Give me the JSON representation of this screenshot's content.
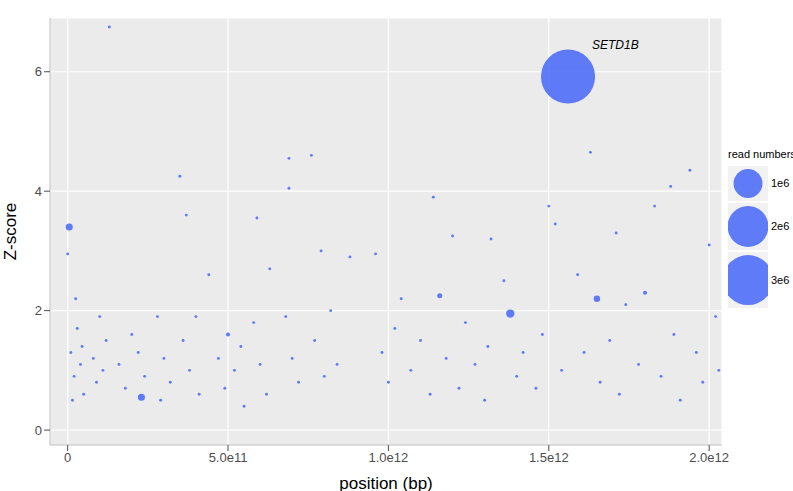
{
  "chart_data": {
    "type": "scatter",
    "x_label": "position (bp)",
    "y_label": "Z-score",
    "color": "#4f6ef7",
    "grid": true,
    "xlim": [
      -55000000000,
      2040000000000
    ],
    "xticks": [
      0,
      {
        "value": 500000000000,
        "label": "5.0e11"
      },
      {
        "value": 1000000000000,
        "label": "1.0e12"
      },
      {
        "value": 1500000000000,
        "label": "1.5e12"
      },
      {
        "value": 2000000000000,
        "label": "2.0e12"
      }
    ],
    "ylim": [
      -0.25,
      6.9
    ],
    "yticks": [
      0,
      2,
      4,
      6
    ],
    "x": [
      0,
      5000000000.0,
      10000000000.0,
      20000000000.0,
      30000000000.0,
      40000000000.0,
      50000000000.0,
      25000000000.0,
      45000000000.0,
      15000000000.0,
      80000000000.0,
      90000000000.0,
      100000000000.0,
      110000000000.0,
      130000000000.0,
      120000000000.0,
      160000000000.0,
      180000000000.0,
      200000000000.0,
      230000000000.0,
      220000000000.0,
      240000000000.0,
      280000000000.0,
      290000000000.0,
      300000000000.0,
      320000000000.0,
      350000000000.0,
      370000000000.0,
      360000000000.0,
      380000000000.0,
      400000000000.0,
      410000000000.0,
      440000000000.0,
      470000000000.0,
      490000000000.0,
      500000000000.0,
      520000000000.0,
      540000000000.0,
      550000000000.0,
      590000000000.0,
      580000000000.0,
      600000000000.0,
      620000000000.0,
      630000000000.0,
      690000000000.0,
      690000000000.0,
      680000000000.0,
      700000000000.0,
      720000000000.0,
      760000000000.0,
      770000000000.0,
      790000000000.0,
      800000000000.0,
      820000000000.0,
      840000000000.0,
      880000000000.0,
      960000000000.0,
      980000000000.0,
      1000000000000.0,
      1020000000000.0,
      1040000000000.0,
      1070000000000.0,
      1100000000000.0,
      1130000000000.0,
      1140000000000.0,
      1160000000000.0,
      1180000000000.0,
      1200000000000.0,
      1220000000000.0,
      1240000000000.0,
      1270000000000.0,
      1300000000000.0,
      1320000000000.0,
      1310000000000.0,
      1360000000000.0,
      1380000000000.0,
      1400000000000.0,
      1420000000000.0,
      1460000000000.0,
      1480000000000.0,
      1500000000000.0,
      1520000000000.0,
      1560000000000.0,
      1540000000000.0,
      1590000000000.0,
      1610000000000.0,
      1630000000000.0,
      1650000000000.0,
      1660000000000.0,
      1690000000000.0,
      1710000000000.0,
      1720000000000.0,
      1740000000000.0,
      1780000000000.0,
      1800000000000.0,
      1830000000000.0,
      1850000000000.0,
      1880000000000.0,
      1890000000000.0,
      1910000000000.0,
      1940000000000.0,
      1960000000000.0,
      1980000000000.0,
      2000000000000.0,
      2020000000000.0,
      2030000000000.0
    ],
    "values": [
      2.95,
      3.4,
      1.3,
      0.9,
      1.7,
      1.1,
      0.6,
      2.2,
      1.4,
      0.5,
      1.2,
      0.8,
      1.9,
      1.0,
      6.75,
      1.5,
      1.1,
      0.7,
      1.6,
      0.55,
      1.3,
      0.9,
      1.9,
      0.5,
      1.2,
      0.8,
      4.25,
      3.6,
      1.5,
      1.0,
      1.9,
      0.6,
      2.6,
      1.2,
      0.7,
      1.6,
      1.0,
      1.4,
      0.4,
      3.55,
      1.8,
      1.1,
      0.6,
      2.7,
      4.55,
      4.05,
      1.9,
      1.2,
      0.8,
      4.6,
      1.5,
      3.0,
      0.9,
      2.0,
      1.1,
      2.9,
      2.95,
      1.3,
      0.8,
      1.7,
      2.2,
      1.0,
      1.5,
      0.6,
      3.9,
      2.25,
      1.2,
      3.25,
      0.7,
      1.8,
      1.1,
      0.5,
      3.2,
      1.4,
      2.5,
      1.95,
      0.9,
      1.3,
      0.7,
      1.6,
      3.75,
      3.45,
      5.92,
      1.0,
      2.6,
      1.3,
      4.65,
      2.2,
      0.8,
      1.5,
      3.3,
      0.6,
      2.1,
      1.1,
      2.3,
      3.75,
      0.9,
      4.08,
      1.6,
      0.5,
      4.35,
      1.3,
      0.8,
      3.1,
      1.9,
      1.0
    ],
    "read_numbers": [
      10000,
      60000,
      10000,
      10000,
      10000,
      10000,
      10000,
      10000,
      10000,
      10000,
      10000,
      10000,
      10000,
      10000,
      10000,
      10000,
      10000,
      10000,
      10000,
      60000,
      10000,
      10000,
      10000,
      10000,
      10000,
      10000,
      10000,
      10000,
      10000,
      10000,
      10000,
      10000,
      10000,
      10000,
      10000,
      20000,
      10000,
      10000,
      10000,
      10000,
      10000,
      10000,
      10000,
      10000,
      10000,
      10000,
      10000,
      10000,
      10000,
      10000,
      10000,
      10000,
      10000,
      10000,
      10000,
      10000,
      10000,
      10000,
      10000,
      10000,
      10000,
      10000,
      10000,
      10000,
      10000,
      30000,
      10000,
      10000,
      10000,
      10000,
      10000,
      10000,
      10000,
      10000,
      10000,
      80000,
      10000,
      10000,
      10000,
      10000,
      10000,
      10000,
      3500000,
      10000,
      10000,
      10000,
      10000,
      50000,
      10000,
      10000,
      10000,
      10000,
      10000,
      10000,
      20000,
      10000,
      10000,
      10000,
      10000,
      10000,
      10000,
      10000,
      10000,
      10000,
      10000,
      10000
    ],
    "size_legend": {
      "title": "read numbers",
      "items": [
        {
          "value": 1000000,
          "label": "1e6"
        },
        {
          "value": 2000000,
          "label": "2e6"
        },
        {
          "value": 3000000,
          "label": "3e6"
        }
      ]
    },
    "annotation": {
      "text": "SETD1B",
      "x": 1560000000000.0,
      "y": 5.92
    }
  }
}
